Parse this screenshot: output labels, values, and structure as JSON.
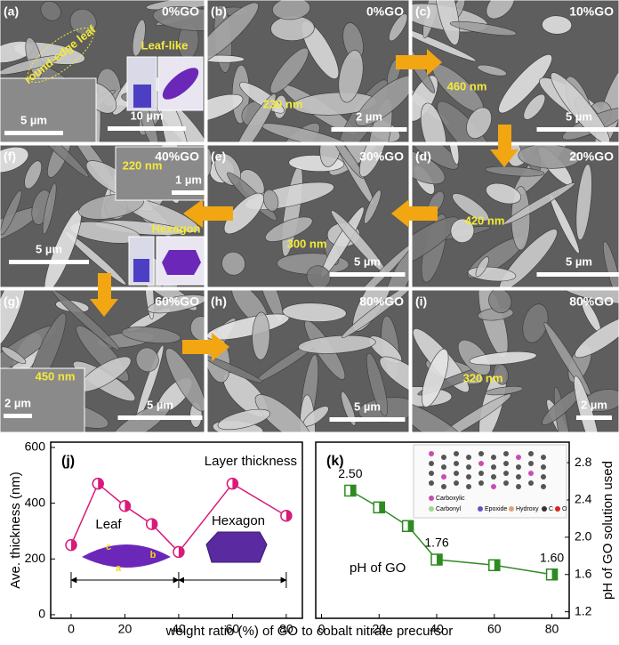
{
  "panels": [
    {
      "label": "(a)",
      "title": "0%GO",
      "texts": [
        "round-edge leaf",
        "Leaf-like",
        "5 µm",
        "10 µm"
      ]
    },
    {
      "label": "(b)",
      "title": "0%GO",
      "texts": [
        "230 nm",
        "2 µm"
      ]
    },
    {
      "label": "(c)",
      "title": "10%GO",
      "texts": [
        "460 nm",
        "5 µm"
      ]
    },
    {
      "label": "(f)",
      "title": "40%GO",
      "texts": [
        "220 nm",
        "1 µm",
        "Hexagon",
        "5 µm"
      ]
    },
    {
      "label": "(e)",
      "title": "30%GO",
      "texts": [
        "300 nm",
        "5 µm"
      ]
    },
    {
      "label": "(d)",
      "title": "20%GO",
      "texts": [
        "420 nm",
        "5 µm"
      ]
    },
    {
      "label": "(g)",
      "title": "60%GO",
      "texts": [
        "450 nm",
        "2 µm",
        "5 µm"
      ]
    },
    {
      "label": "(h)",
      "title": "80%GO",
      "texts": [
        "5 µm"
      ]
    },
    {
      "label": "(i)",
      "title": "80%GO",
      "texts": [
        "320 nm",
        "2 µm"
      ]
    }
  ],
  "chart_data": [
    {
      "type": "line",
      "label": "(j)",
      "ylabel": "Ave. thickness (nm)",
      "x": [
        0,
        10,
        20,
        30,
        40,
        60,
        80
      ],
      "series": [
        {
          "name": "Layer thickness",
          "color": "#d81b7a",
          "values": [
            250,
            470,
            390,
            325,
            225,
            470,
            355
          ]
        }
      ],
      "xlim": [
        -7.6,
        86
      ],
      "xticks": [
        0,
        20,
        40,
        60,
        80
      ],
      "ylim": [
        -13,
        619
      ],
      "yticks": [
        0,
        200,
        400,
        600
      ],
      "annotations": [
        "Leaf",
        "Hexagon",
        "a",
        "b",
        "c"
      ]
    },
    {
      "type": "line",
      "label": "(k)",
      "y2label": "pH of GO solution used",
      "x": [
        10,
        20,
        30,
        40,
        60,
        80
      ],
      "series": [
        {
          "name": "pH of GO",
          "color": "#2e8b22",
          "axis": "y2",
          "values": [
            2.5,
            2.32,
            2.12,
            1.76,
            1.7,
            1.6
          ],
          "value_labels": [
            "2.50",
            null,
            null,
            "1.76",
            null,
            "1.60"
          ]
        }
      ],
      "xlim": [
        -2,
        86
      ],
      "xticks": [
        0,
        20,
        40,
        60,
        80
      ],
      "y2lim": [
        1.13,
        3.02
      ],
      "y2ticks": [
        1.2,
        1.6,
        {
          "value": 2,
          "label": "2.0"
        },
        2.4,
        2.8
      ],
      "inset_labels": [
        "Carboxylic",
        "Carbonyl",
        "Epoxide",
        "Hydroxy",
        "C",
        "O"
      ]
    }
  ],
  "xlabel": "weight ratio (%) of GO to cobalt nitrate precursor"
}
